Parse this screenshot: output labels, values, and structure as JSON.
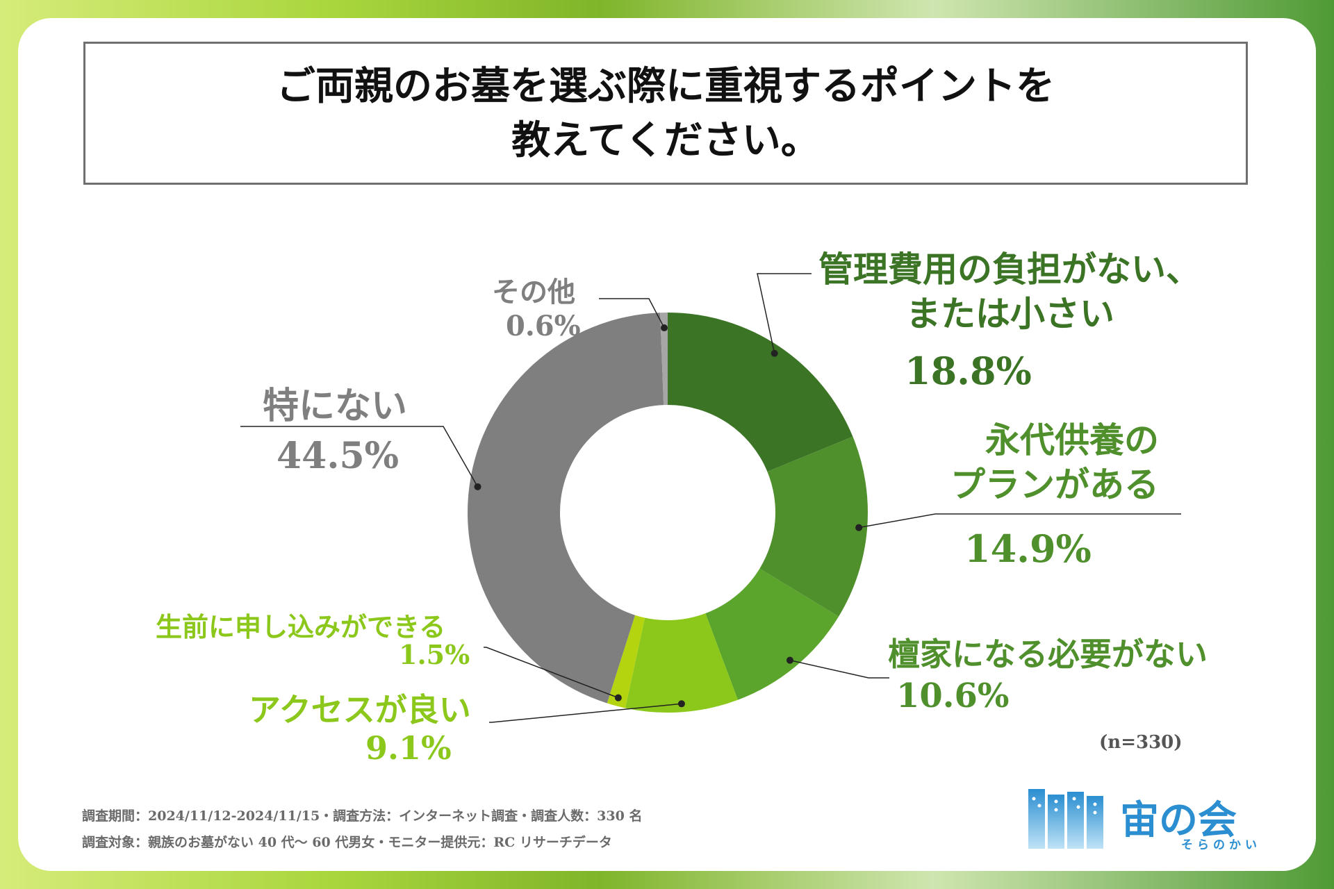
{
  "title": {
    "line1": "ご両親のお墓を選ぶ際に重視するポイントを",
    "line2": "教えてください。"
  },
  "colors": {
    "dark_green": "#3c7425",
    "mid_green": "#4f8f2c",
    "green": "#5ba52c",
    "light_green": "#8cc81c",
    "yellow_green": "#b3d40f",
    "gray": "#7f7f7f",
    "light_gray": "#a6a6a6"
  },
  "chart_data": {
    "type": "pie",
    "subtype": "donut",
    "n_label": "(n=330)",
    "slices": [
      {
        "label": "管理費用の負担がない、または小さい",
        "label_lines": [
          "管理費用の負担がない、",
          "または小さい"
        ],
        "value": 18.8,
        "value_label": "18.8%",
        "color": "#3c7425"
      },
      {
        "label": "永代供養のプランがある",
        "label_lines": [
          "永代供養の",
          "プランがある"
        ],
        "value": 14.9,
        "value_label": "14.9%",
        "color": "#4f8f2c"
      },
      {
        "label": "檀家になる必要がない",
        "label_lines": [
          "檀家になる必要がない"
        ],
        "value": 10.6,
        "value_label": "10.6%",
        "color": "#5ba52c"
      },
      {
        "label": "アクセスが良い",
        "label_lines": [
          "アクセスが良い"
        ],
        "value": 9.1,
        "value_label": "9.1%",
        "color": "#8cc81c"
      },
      {
        "label": "生前に申し込みができる",
        "label_lines": [
          "生前に申し込みができる"
        ],
        "value": 1.5,
        "value_label": "1.5%",
        "color": "#b3d40f"
      },
      {
        "label": "特にない",
        "label_lines": [
          "特にない"
        ],
        "value": 44.5,
        "value_label": "44.5%",
        "color": "#7f7f7f"
      },
      {
        "label": "その他",
        "label_lines": [
          "その他"
        ],
        "value": 0.6,
        "value_label": "0.6%",
        "color": "#a6a6a6"
      }
    ]
  },
  "footer": {
    "line1": "調査期間：2024/11/12-2024/11/15・調査方法：インターネット調査・調査人数：330 名",
    "line2": "調査対象：親族のお墓がない 40 代〜 60 代男女・モニター提供元：RC リサーチデータ"
  },
  "logo": {
    "name": "宙の会",
    "reading": "そらのかい"
  }
}
